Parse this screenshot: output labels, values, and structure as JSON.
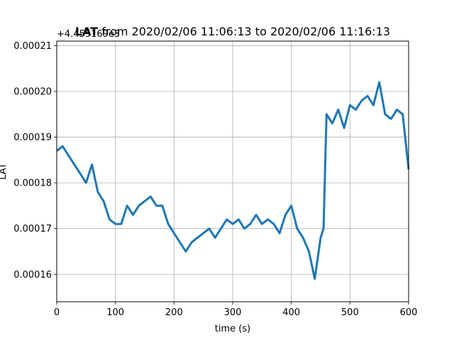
{
  "chart_data": {
    "type": "line",
    "title_bold": "LAT",
    "title_rest": " from 2020/02/06 11:06:13 to 2020/02/06 11:16:13",
    "xlabel": "time (s)",
    "ylabel": "LAT",
    "y_offset_label": "+4.455169e3",
    "xlim": [
      0,
      600
    ],
    "ylim": [
      0.000154,
      0.000211
    ],
    "x_ticks": [
      0,
      100,
      200,
      300,
      400,
      500,
      600
    ],
    "x_tick_labels": [
      "0",
      "100",
      "200",
      "300",
      "400",
      "500",
      "600"
    ],
    "y_ticks": [
      0.00016,
      0.00017,
      0.00018,
      0.00019,
      0.0002,
      0.00021
    ],
    "y_tick_labels": [
      "0.00016",
      "0.00017",
      "0.00018",
      "0.00019",
      "0.00020",
      "0.00021"
    ],
    "grid": true,
    "series": [
      {
        "color": "#1f77b4",
        "x": [
          0,
          10,
          20,
          30,
          40,
          50,
          60,
          70,
          80,
          90,
          100,
          110,
          120,
          130,
          140,
          150,
          160,
          170,
          180,
          190,
          200,
          210,
          220,
          230,
          240,
          250,
          260,
          270,
          280,
          290,
          300,
          310,
          320,
          330,
          340,
          350,
          360,
          370,
          380,
          390,
          400,
          410,
          420,
          430,
          440,
          450,
          455,
          460,
          470,
          480,
          490,
          500,
          510,
          520,
          530,
          540,
          550,
          560,
          570,
          580,
          590,
          600
        ],
        "y": [
          0.000187,
          0.000188,
          0.000186,
          0.000184,
          0.000182,
          0.00018,
          0.000184,
          0.000178,
          0.000176,
          0.000172,
          0.000171,
          0.000171,
          0.000175,
          0.000173,
          0.000175,
          0.000176,
          0.000177,
          0.000175,
          0.000175,
          0.000171,
          0.000169,
          0.000167,
          0.000165,
          0.000167,
          0.000168,
          0.000169,
          0.00017,
          0.000168,
          0.00017,
          0.000172,
          0.000171,
          0.000172,
          0.00017,
          0.000171,
          0.000173,
          0.000171,
          0.000172,
          0.000171,
          0.000169,
          0.000173,
          0.000175,
          0.00017,
          0.000168,
          0.000165,
          0.000159,
          0.000168,
          0.00017,
          0.000195,
          0.000193,
          0.000196,
          0.000192,
          0.000197,
          0.000196,
          0.000198,
          0.000199,
          0.000197,
          0.000202,
          0.000195,
          0.000194,
          0.000196,
          0.000195,
          0.000183
        ]
      }
    ]
  }
}
